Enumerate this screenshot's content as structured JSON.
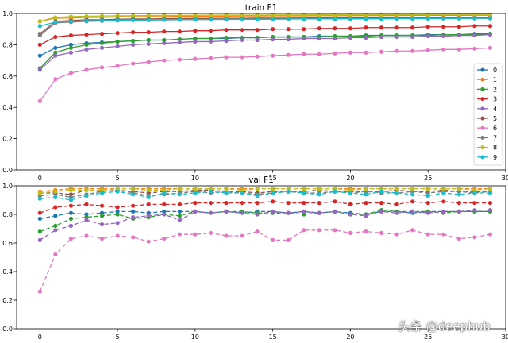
{
  "watermark": "头条 @deephub",
  "chart_data": [
    {
      "type": "line",
      "title": "train F1",
      "xlabel": "",
      "ylabel": "",
      "xlim": [
        -1.5,
        30
      ],
      "ylim": [
        0.0,
        1.0
      ],
      "xticks": [
        0,
        5,
        10,
        15,
        20,
        25,
        30
      ],
      "yticks": [
        0.0,
        0.2,
        0.4,
        0.6,
        0.8,
        1.0
      ],
      "linestyle": "solid",
      "legend": "center-right",
      "series": [
        {
          "name": "0",
          "color": "#1f77b4",
          "values": [
            0.73,
            0.78,
            0.8,
            0.81,
            0.815,
            0.82,
            0.825,
            0.83,
            0.83,
            0.835,
            0.84,
            0.84,
            0.84,
            0.845,
            0.845,
            0.85,
            0.85,
            0.85,
            0.855,
            0.855,
            0.855,
            0.86,
            0.86,
            0.86,
            0.86,
            0.865,
            0.865,
            0.865,
            0.87,
            0.87
          ]
        },
        {
          "name": "1",
          "color": "#ff7f0e",
          "values": [
            0.95,
            0.97,
            0.97,
            0.975,
            0.975,
            0.978,
            0.978,
            0.98,
            0.98,
            0.982,
            0.982,
            0.983,
            0.983,
            0.984,
            0.984,
            0.985,
            0.985,
            0.985,
            0.986,
            0.986,
            0.986,
            0.987,
            0.987,
            0.987,
            0.988,
            0.988,
            0.988,
            0.988,
            0.989,
            0.989
          ]
        },
        {
          "name": "2",
          "color": "#2ca02c",
          "values": [
            0.65,
            0.75,
            0.78,
            0.8,
            0.81,
            0.82,
            0.825,
            0.83,
            0.83,
            0.835,
            0.84,
            0.84,
            0.845,
            0.845,
            0.845,
            0.85,
            0.85,
            0.85,
            0.85,
            0.855,
            0.855,
            0.855,
            0.86,
            0.86,
            0.86,
            0.86,
            0.865,
            0.865,
            0.865,
            0.87
          ]
        },
        {
          "name": "3",
          "color": "#d62728",
          "values": [
            0.8,
            0.85,
            0.86,
            0.865,
            0.87,
            0.875,
            0.88,
            0.88,
            0.885,
            0.885,
            0.89,
            0.89,
            0.895,
            0.895,
            0.895,
            0.9,
            0.9,
            0.9,
            0.905,
            0.905,
            0.905,
            0.91,
            0.91,
            0.91,
            0.91,
            0.915,
            0.915,
            0.915,
            0.92,
            0.92
          ]
        },
        {
          "name": "4",
          "color": "#9467bd",
          "values": [
            0.64,
            0.73,
            0.75,
            0.77,
            0.78,
            0.79,
            0.8,
            0.805,
            0.81,
            0.815,
            0.82,
            0.82,
            0.825,
            0.83,
            0.83,
            0.835,
            0.835,
            0.84,
            0.84,
            0.84,
            0.845,
            0.845,
            0.85,
            0.85,
            0.85,
            0.855,
            0.855,
            0.86,
            0.86,
            0.865
          ]
        },
        {
          "name": "5",
          "color": "#8c564b",
          "values": [
            0.87,
            0.95,
            0.955,
            0.96,
            0.96,
            0.963,
            0.965,
            0.965,
            0.967,
            0.967,
            0.968,
            0.968,
            0.969,
            0.969,
            0.97,
            0.97,
            0.97,
            0.971,
            0.971,
            0.971,
            0.972,
            0.972,
            0.972,
            0.972,
            0.973,
            0.973,
            0.973,
            0.973,
            0.974,
            0.974
          ]
        },
        {
          "name": "6",
          "color": "#e377c2",
          "values": [
            0.44,
            0.58,
            0.62,
            0.64,
            0.655,
            0.665,
            0.68,
            0.69,
            0.7,
            0.705,
            0.71,
            0.715,
            0.72,
            0.72,
            0.725,
            0.73,
            0.735,
            0.74,
            0.74,
            0.745,
            0.75,
            0.75,
            0.755,
            0.76,
            0.76,
            0.765,
            0.77,
            0.77,
            0.775,
            0.78
          ]
        },
        {
          "name": "7",
          "color": "#7f7f7f",
          "values": [
            0.86,
            0.94,
            0.945,
            0.95,
            0.952,
            0.955,
            0.957,
            0.958,
            0.959,
            0.96,
            0.961,
            0.962,
            0.962,
            0.963,
            0.963,
            0.964,
            0.964,
            0.965,
            0.965,
            0.965,
            0.966,
            0.966,
            0.966,
            0.967,
            0.967,
            0.967,
            0.968,
            0.968,
            0.968,
            0.969
          ]
        },
        {
          "name": "8",
          "color": "#bcbd22",
          "values": [
            0.95,
            0.975,
            0.98,
            0.982,
            0.984,
            0.985,
            0.986,
            0.987,
            0.988,
            0.988,
            0.989,
            0.989,
            0.99,
            0.99,
            0.99,
            0.991,
            0.991,
            0.991,
            0.992,
            0.992,
            0.992,
            0.992,
            0.993,
            0.993,
            0.993,
            0.993,
            0.994,
            0.994,
            0.994,
            0.994
          ]
        },
        {
          "name": "9",
          "color": "#17becf",
          "values": [
            0.92,
            0.945,
            0.95,
            0.953,
            0.955,
            0.957,
            0.958,
            0.959,
            0.96,
            0.961,
            0.962,
            0.962,
            0.963,
            0.963,
            0.964,
            0.964,
            0.965,
            0.965,
            0.965,
            0.966,
            0.966,
            0.966,
            0.967,
            0.967,
            0.967,
            0.968,
            0.968,
            0.968,
            0.969,
            0.969
          ]
        }
      ]
    },
    {
      "type": "line",
      "title": "val F1",
      "xlabel": "",
      "ylabel": "",
      "xlim": [
        -1.5,
        30
      ],
      "ylim": [
        0.0,
        1.0
      ],
      "xticks": [
        0,
        5,
        10,
        15,
        20,
        25,
        30
      ],
      "yticks": [
        0.0,
        0.2,
        0.4,
        0.6,
        0.8,
        1.0
      ],
      "linestyle": "dashed",
      "legend": "none",
      "series": [
        {
          "name": "0",
          "color": "#1f77b4",
          "values": [
            0.77,
            0.79,
            0.81,
            0.8,
            0.81,
            0.82,
            0.82,
            0.81,
            0.82,
            0.82,
            0.82,
            0.81,
            0.82,
            0.81,
            0.82,
            0.82,
            0.81,
            0.82,
            0.81,
            0.82,
            0.81,
            0.8,
            0.82,
            0.82,
            0.81,
            0.82,
            0.82,
            0.82,
            0.82,
            0.82
          ]
        },
        {
          "name": "1",
          "color": "#ff7f0e",
          "values": [
            0.96,
            0.97,
            0.98,
            0.98,
            0.98,
            0.98,
            0.98,
            0.98,
            0.98,
            0.98,
            0.98,
            0.98,
            0.98,
            0.98,
            0.98,
            0.98,
            0.98,
            0.98,
            0.98,
            0.98,
            0.98,
            0.98,
            0.98,
            0.98,
            0.98,
            0.98,
            0.98,
            0.98,
            0.98,
            0.98
          ]
        },
        {
          "name": "2",
          "color": "#2ca02c",
          "values": [
            0.68,
            0.72,
            0.77,
            0.78,
            0.79,
            0.8,
            0.77,
            0.78,
            0.8,
            0.79,
            0.82,
            0.81,
            0.82,
            0.82,
            0.81,
            0.81,
            0.81,
            0.8,
            0.81,
            0.82,
            0.8,
            0.8,
            0.83,
            0.82,
            0.82,
            0.82,
            0.81,
            0.82,
            0.82,
            0.82
          ]
        },
        {
          "name": "3",
          "color": "#d62728",
          "values": [
            0.81,
            0.85,
            0.86,
            0.87,
            0.86,
            0.85,
            0.86,
            0.87,
            0.87,
            0.87,
            0.88,
            0.88,
            0.88,
            0.88,
            0.88,
            0.89,
            0.88,
            0.88,
            0.88,
            0.89,
            0.87,
            0.88,
            0.88,
            0.87,
            0.89,
            0.88,
            0.89,
            0.88,
            0.88,
            0.88
          ]
        },
        {
          "name": "4",
          "color": "#9467bd",
          "values": [
            0.62,
            0.69,
            0.72,
            0.76,
            0.73,
            0.74,
            0.78,
            0.79,
            0.8,
            0.76,
            0.82,
            0.81,
            0.82,
            0.81,
            0.8,
            0.82,
            0.81,
            0.82,
            0.81,
            0.82,
            0.8,
            0.79,
            0.82,
            0.81,
            0.82,
            0.81,
            0.82,
            0.82,
            0.83,
            0.83
          ]
        },
        {
          "name": "5",
          "color": "#8c564b",
          "values": [
            0.95,
            0.95,
            0.94,
            0.97,
            0.96,
            0.97,
            0.96,
            0.95,
            0.96,
            0.96,
            0.97,
            0.97,
            0.96,
            0.96,
            0.95,
            0.96,
            0.96,
            0.96,
            0.97,
            0.96,
            0.96,
            0.96,
            0.96,
            0.97,
            0.96,
            0.96,
            0.97,
            0.96,
            0.96,
            0.96
          ]
        },
        {
          "name": "6",
          "color": "#e377c2",
          "values": [
            0.26,
            0.52,
            0.63,
            0.65,
            0.63,
            0.65,
            0.64,
            0.61,
            0.63,
            0.66,
            0.66,
            0.67,
            0.65,
            0.65,
            0.68,
            0.62,
            0.62,
            0.69,
            0.69,
            0.69,
            0.67,
            0.68,
            0.67,
            0.66,
            0.69,
            0.66,
            0.66,
            0.63,
            0.64,
            0.66
          ]
        },
        {
          "name": "7",
          "color": "#7f7f7f",
          "values": [
            0.93,
            0.94,
            0.92,
            0.94,
            0.96,
            0.97,
            0.95,
            0.93,
            0.94,
            0.95,
            0.96,
            0.95,
            0.96,
            0.95,
            0.94,
            0.95,
            0.96,
            0.95,
            0.95,
            0.96,
            0.95,
            0.96,
            0.95,
            0.95,
            0.96,
            0.95,
            0.96,
            0.96,
            0.95,
            0.96
          ]
        },
        {
          "name": "8",
          "color": "#bcbd22",
          "values": [
            0.95,
            0.96,
            0.97,
            0.97,
            0.97,
            0.98,
            0.98,
            0.97,
            0.97,
            0.98,
            0.98,
            0.98,
            0.98,
            0.97,
            0.98,
            0.98,
            0.98,
            0.98,
            0.98,
            0.98,
            0.97,
            0.98,
            0.98,
            0.98,
            0.98,
            0.98,
            0.98,
            0.98,
            0.97,
            0.98
          ]
        },
        {
          "name": "9",
          "color": "#17becf",
          "values": [
            0.91,
            0.92,
            0.9,
            0.93,
            0.95,
            0.96,
            0.94,
            0.92,
            0.95,
            0.94,
            0.95,
            0.96,
            0.95,
            0.95,
            0.93,
            0.95,
            0.96,
            0.95,
            0.94,
            0.96,
            0.95,
            0.94,
            0.96,
            0.95,
            0.94,
            0.93,
            0.95,
            0.94,
            0.95,
            0.95
          ]
        }
      ]
    }
  ]
}
